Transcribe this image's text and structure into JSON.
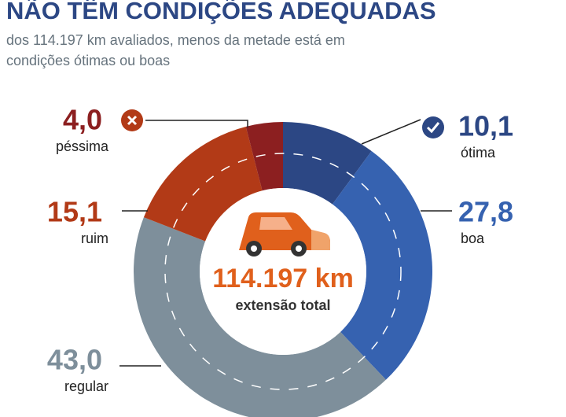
{
  "chart_data": {
    "type": "donut",
    "title": "NÃO TÊM CONDIÇÕES ADEQUADAS",
    "subtitle": [
      "dos 114.197 km avaliados, menos da metade está em",
      "condições ótimas ou boas"
    ],
    "categories": [
      "ótima",
      "boa",
      "regular",
      "ruim",
      "péssima"
    ],
    "values": [
      10.1,
      27.8,
      43.0,
      15.1,
      4.0
    ],
    "value_labels": [
      "10,1",
      "27,8",
      "43,0",
      "15,1",
      "4,0"
    ],
    "colors": [
      "#2c4784",
      "#3662b0",
      "#7e8f9b",
      "#b23a17",
      "#8c1f20"
    ],
    "center_label": "114.197 km",
    "center_sublabel": "extensão total"
  }
}
